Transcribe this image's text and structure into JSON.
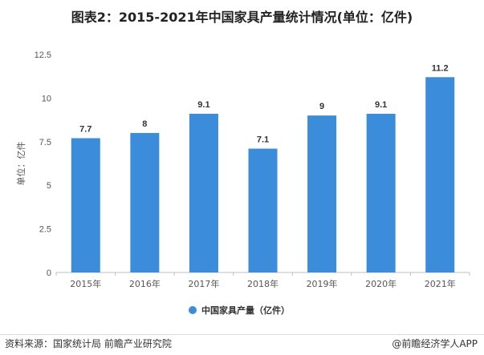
{
  "chart_data": {
    "type": "bar",
    "title": "图表2：2015-2021年中国家具产量统计情况(单位：亿件)",
    "categories": [
      "2015年",
      "2016年",
      "2017年",
      "2018年",
      "2019年",
      "2020年",
      "2021年"
    ],
    "series": [
      {
        "name": "中国家具产量（亿件）",
        "values": [
          7.7,
          8,
          9.1,
          7.1,
          9,
          9.1,
          11.2
        ]
      }
    ],
    "data_labels": [
      "7.7",
      "8",
      "9.1",
      "7.1",
      "9",
      "9.1",
      "11.2"
    ],
    "ylabel": "单位：亿件",
    "xlabel": "",
    "ylim": [
      0,
      12.5
    ],
    "yticks": [
      "0",
      "2.5",
      "5",
      "7.5",
      "10",
      "12.5"
    ],
    "ytick_values": [
      0,
      2.5,
      5,
      7.5,
      10,
      12.5
    ],
    "grid": false,
    "legend": "bottom",
    "bar_color": "#3b8ddb"
  },
  "footer": {
    "source": "资料来源：国家统计局 前瞻产业研究院",
    "brand": "@前瞻经济学人APP"
  }
}
